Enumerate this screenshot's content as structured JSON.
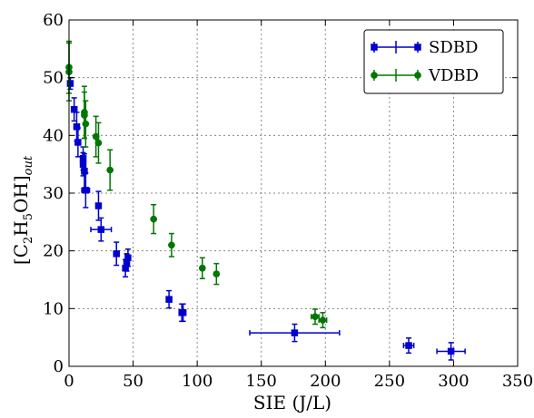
{
  "chart_data": {
    "type": "scatter",
    "xlabel": "SIE (J/L)",
    "ylabel": "[C2H5OH]out",
    "ylabel_parts": {
      "open": "[C",
      "sub1": "2",
      "mid": "H",
      "sub2": "5",
      "rest": "OH]",
      "sub3": "out"
    },
    "xlim": [
      0,
      350
    ],
    "ylim": [
      0,
      60
    ],
    "xticks": [
      0,
      50,
      100,
      150,
      200,
      250,
      300,
      350
    ],
    "yticks": [
      0,
      10,
      20,
      30,
      40,
      50,
      60
    ],
    "grid": true,
    "legend_position": "top-right",
    "series": [
      {
        "name": "SDBD",
        "color": "#0000cc",
        "marker": "square",
        "points": [
          {
            "x": 1,
            "y": 49,
            "xerr": 1,
            "yerr": 1
          },
          {
            "x": 4,
            "y": 44.5,
            "xerr": 1,
            "yerr": 2
          },
          {
            "x": 6,
            "y": 41.5,
            "xerr": 1,
            "yerr": 2.5
          },
          {
            "x": 7,
            "y": 38.8,
            "xerr": 1,
            "yerr": 2.5
          },
          {
            "x": 11,
            "y": 36,
            "xerr": 1.5,
            "yerr": 2
          },
          {
            "x": 11,
            "y": 35,
            "xerr": 1.5,
            "yerr": 2
          },
          {
            "x": 12,
            "y": 33.8,
            "xerr": 1.5,
            "yerr": 3
          },
          {
            "x": 13,
            "y": 30.5,
            "xerr": 3,
            "yerr": 3
          },
          {
            "x": 23,
            "y": 27.8,
            "xerr": 1.5,
            "yerr": 2.5
          },
          {
            "x": 25,
            "y": 23.7,
            "xerr": 8,
            "yerr": 2
          },
          {
            "x": 37,
            "y": 19.5,
            "xerr": 1.5,
            "yerr": 2
          },
          {
            "x": 44,
            "y": 17,
            "xerr": 1.5,
            "yerr": 1.5
          },
          {
            "x": 45,
            "y": 18,
            "xerr": 1.5,
            "yerr": 1.5
          },
          {
            "x": 46,
            "y": 18.8,
            "xerr": 1.5,
            "yerr": 1.5
          },
          {
            "x": 78,
            "y": 11.6,
            "xerr": 2,
            "yerr": 1.5
          },
          {
            "x": 88,
            "y": 9.3,
            "xerr": 2,
            "yerr": 1.5
          },
          {
            "x": 89,
            "y": 9.3,
            "xerr": 2,
            "yerr": 1.5
          },
          {
            "x": 176,
            "y": 5.8,
            "xerr": 35,
            "yerr": 1.5
          },
          {
            "x": 265,
            "y": 3.6,
            "xerr": 4,
            "yerr": 1.3
          },
          {
            "x": 298,
            "y": 2.6,
            "xerr": 11,
            "yerr": 1.5
          }
        ]
      },
      {
        "name": "VDBD",
        "color": "#007700",
        "marker": "circle",
        "points": [
          {
            "x": 0,
            "y": 51.8,
            "xerr": 0.5,
            "yerr": 4.5
          },
          {
            "x": 0,
            "y": 51,
            "xerr": 0.5,
            "yerr": 5
          },
          {
            "x": 12,
            "y": 44,
            "xerr": 1,
            "yerr": 4.5
          },
          {
            "x": 12,
            "y": 43.5,
            "xerr": 1,
            "yerr": 4
          },
          {
            "x": 13,
            "y": 42,
            "xerr": 1,
            "yerr": 4
          },
          {
            "x": 21,
            "y": 39.8,
            "xerr": 1,
            "yerr": 3.5
          },
          {
            "x": 23,
            "y": 38.7,
            "xerr": 1,
            "yerr": 3.5
          },
          {
            "x": 32,
            "y": 34,
            "xerr": 1,
            "yerr": 3.5
          },
          {
            "x": 66,
            "y": 25.5,
            "xerr": 1,
            "yerr": 2.5
          },
          {
            "x": 80,
            "y": 21,
            "xerr": 1,
            "yerr": 2
          },
          {
            "x": 104,
            "y": 17,
            "xerr": 1.5,
            "yerr": 1.8
          },
          {
            "x": 115,
            "y": 16,
            "xerr": 1.5,
            "yerr": 1.8
          },
          {
            "x": 192,
            "y": 8.6,
            "xerr": 3,
            "yerr": 1.3
          },
          {
            "x": 198,
            "y": 8,
            "xerr": 3,
            "yerr": 1.3
          }
        ]
      }
    ]
  }
}
